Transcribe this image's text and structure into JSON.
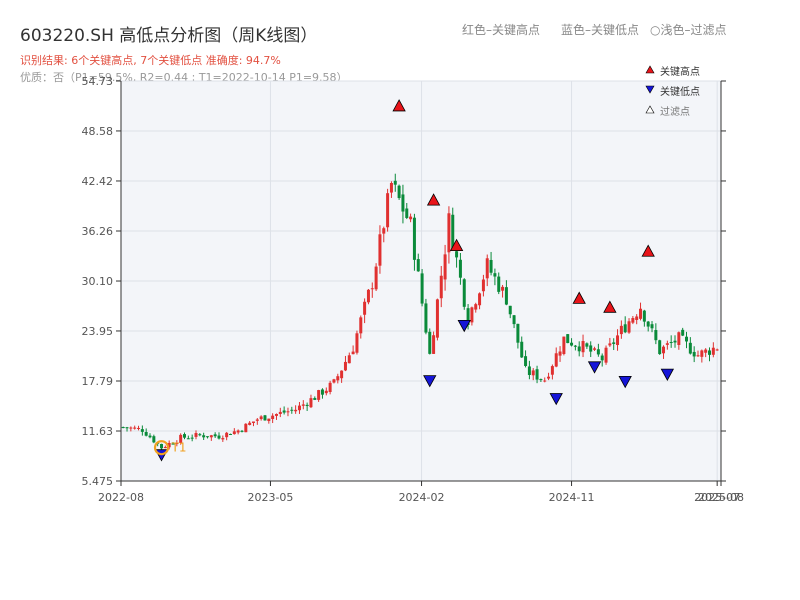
{
  "header": {
    "title": "603220.SH 高低点分析图（周K线图）",
    "legend_red": "红色–关键高点",
    "legend_blue": "蓝色–关键低点",
    "legend_light": "○浅色–过滤点",
    "result_line": "识别结果: 6个关键高点, 7个关键低点  准确度: 94.7%",
    "quality_line": "优质：否（P1=59.5%, R2=0.44 ; T1=2022-10-14 P1=9.58）"
  },
  "colors": {
    "up": "#e03030",
    "down": "#0a8a3a",
    "high": "#e8141a",
    "low": "#1515d8",
    "filtered_marker": "#f0a020"
  },
  "chart_data": {
    "type": "candlestick",
    "x_ticks": [
      "2022-08",
      "2023-05",
      "2024-02",
      "2024-11",
      "2025-07",
      "2025-08"
    ],
    "y_ticks": [
      5.475,
      11.63,
      17.79,
      23.95,
      30.1,
      36.26,
      42.42,
      48.58,
      54.73
    ],
    "y_tick_labels": [
      "5.475",
      "11.63",
      "17.79",
      "23.95",
      "30.10",
      "36.26",
      "42.42",
      "48.58",
      "54.73"
    ],
    "ylim": [
      5.475,
      54.73
    ],
    "x_range": [
      "2022-08-01",
      "2025-08-01"
    ],
    "grid": true,
    "legend": [
      {
        "label": "关键高点",
        "marker": "up-triangle",
        "color": "#e8141a"
      },
      {
        "label": "关键低点",
        "marker": "down-triangle",
        "color": "#1515d8"
      },
      {
        "label": "过滤点",
        "marker": "up-triangle",
        "color": "#ffffff"
      }
    ],
    "close_path": [
      [
        "2022-08-05",
        12.1
      ],
      [
        "2022-09-09",
        11.8
      ],
      [
        "2022-10-14",
        9.6
      ],
      [
        "2022-11-18",
        10.8
      ],
      [
        "2022-12-23",
        11.1
      ],
      [
        "2023-01-27",
        11.0
      ],
      [
        "2023-03-03",
        11.7
      ],
      [
        "2023-04-07",
        13.1
      ],
      [
        "2023-05-12",
        13.7
      ],
      [
        "2023-06-16",
        14.3
      ],
      [
        "2023-07-21",
        15.8
      ],
      [
        "2023-08-25",
        17.5
      ],
      [
        "2023-09-29",
        22.0
      ],
      [
        "2023-11-03",
        30.0
      ],
      [
        "2023-12-08",
        42.0
      ],
      [
        "2024-01-12",
        37.0
      ],
      [
        "2024-02-16",
        21.0
      ],
      [
        "2024-03-22",
        37.5
      ],
      [
        "2024-04-26",
        25.5
      ],
      [
        "2024-05-31",
        32.0
      ],
      [
        "2024-07-05",
        28.0
      ],
      [
        "2024-08-09",
        19.0
      ],
      [
        "2024-09-13",
        18.0
      ],
      [
        "2024-10-18",
        23.0
      ],
      [
        "2024-11-22",
        22.0
      ],
      [
        "2024-12-27",
        20.5
      ],
      [
        "2025-01-31",
        24.0
      ],
      [
        "2025-03-07",
        27.0
      ],
      [
        "2025-04-11",
        21.5
      ],
      [
        "2025-05-16",
        23.0
      ],
      [
        "2025-06-20",
        21.0
      ],
      [
        "2025-07-25",
        22.0
      ]
    ],
    "key_highs": [
      {
        "date": "2023-12-22",
        "value": 50.8
      },
      {
        "date": "2024-02-23",
        "value": 39.2
      },
      {
        "date": "2024-04-05",
        "value": 33.6
      },
      {
        "date": "2024-11-15",
        "value": 27.1
      },
      {
        "date": "2025-01-10",
        "value": 26.0
      },
      {
        "date": "2025-03-21",
        "value": 32.9
      }
    ],
    "key_lows": [
      {
        "date": "2022-10-14",
        "value": 9.58
      },
      {
        "date": "2024-02-16",
        "value": 18.7
      },
      {
        "date": "2024-04-19",
        "value": 25.5
      },
      {
        "date": "2024-10-04",
        "value": 16.5
      },
      {
        "date": "2024-12-13",
        "value": 20.4
      },
      {
        "date": "2025-02-07",
        "value": 18.6
      },
      {
        "date": "2025-04-25",
        "value": 19.5
      }
    ],
    "filtered_point": {
      "date": "2022-10-14",
      "value": 9.58,
      "label": "T1"
    }
  }
}
